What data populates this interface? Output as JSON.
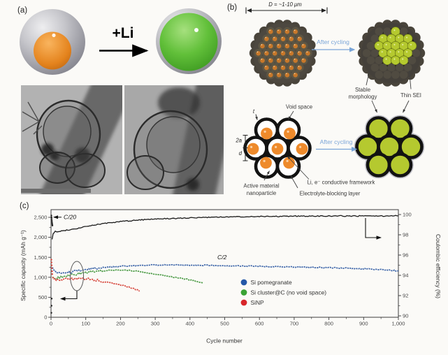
{
  "panel_a": {
    "label": "(a)",
    "reaction_label": "+Li"
  },
  "panel_b": {
    "label": "(b)",
    "diameter_label": "D = ~1-10 μm",
    "after_cycling_top": "After cycling",
    "after_cycling_bottom": "After cycling",
    "stable_morphology_line1": "Stable",
    "stable_morphology_line2": "morphology",
    "thin_sei": "Thin SEI",
    "void_space": "Void space",
    "thickness_label": "t",
    "diameter_2a_label": "2a",
    "spacing_d_label": "d",
    "active_material_line1": "Active material",
    "active_material_line2": "nanoparticle",
    "electrolyte_blocking": "Electrolyte-blocking layer",
    "conductive_framework": "Li, e⁻ conductive framework",
    "colors": {
      "particle_orange": "#ee8a2b",
      "lithiated_green": "#b5c92f",
      "framework_black": "#121212",
      "sei_gray": "#c2c2ca",
      "after_cycling_blue": "#7aa5d8",
      "shell_dark": "#46413a"
    }
  },
  "panel_c": {
    "label": "(c)"
  },
  "chart_data": {
    "type": "line",
    "title": "",
    "xlabel": "Cycle number",
    "ylabel_left": "Specific capacity (mAh g⁻¹)",
    "ylabel_right": "Coulombic efficiency (%)",
    "xlim": [
      0,
      1000
    ],
    "ylim_left": [
      0,
      2690
    ],
    "ylim_right": [
      90,
      100.6
    ],
    "grid": false,
    "legend_position": "inside bottom, left-center",
    "annotations": {
      "c20": "C/20",
      "c2": "C/2"
    },
    "x_ticks": [
      {
        "v": 0,
        "l": "0"
      },
      {
        "v": 100,
        "l": "100"
      },
      {
        "v": 200,
        "l": "200"
      },
      {
        "v": 300,
        "l": "300"
      },
      {
        "v": 400,
        "l": "400"
      },
      {
        "v": 500,
        "l": "500"
      },
      {
        "v": 600,
        "l": "600"
      },
      {
        "v": 700,
        "l": "700"
      },
      {
        "v": 800,
        "l": "800"
      },
      {
        "v": 900,
        "l": "900"
      },
      {
        "v": 1000,
        "l": "1,000"
      }
    ],
    "y_ticks_left": [
      {
        "v": 0,
        "l": "0"
      },
      {
        "v": 500,
        "l": "500"
      },
      {
        "v": 1000,
        "l": "1,000"
      },
      {
        "v": 1500,
        "l": "1,500"
      },
      {
        "v": 2000,
        "l": "2,000"
      },
      {
        "v": 2500,
        "l": "2,500"
      }
    ],
    "y_ticks_right": [
      {
        "v": 90,
        "l": "90"
      },
      {
        "v": 92,
        "l": "92"
      },
      {
        "v": 94,
        "l": "94"
      },
      {
        "v": 96,
        "l": "96"
      },
      {
        "v": 98,
        "l": "98"
      },
      {
        "v": 100,
        "l": "100"
      }
    ],
    "legend": [
      {
        "label": "Si pomegranate",
        "color": "#2458a8"
      },
      {
        "label": "Si cluster@C (no void space)",
        "color": "#3aa335"
      },
      {
        "label": "SiNP",
        "color": "#d8262a"
      }
    ],
    "series": [
      {
        "name": "Si pomegranate",
        "axis": "left",
        "color": "#3a63a8",
        "points": [
          [
            4,
            1260
          ],
          [
            8,
            1180
          ],
          [
            15,
            1120
          ],
          [
            25,
            1095
          ],
          [
            40,
            1110
          ],
          [
            60,
            1135
          ],
          [
            80,
            1165
          ],
          [
            100,
            1190
          ],
          [
            125,
            1220
          ],
          [
            150,
            1245
          ],
          [
            175,
            1262
          ],
          [
            200,
            1275
          ],
          [
            250,
            1295
          ],
          [
            300,
            1308
          ],
          [
            350,
            1310
          ],
          [
            400,
            1305
          ],
          [
            450,
            1300
          ],
          [
            500,
            1290
          ],
          [
            550,
            1284
          ],
          [
            600,
            1276
          ],
          [
            650,
            1268
          ],
          [
            700,
            1258
          ],
          [
            750,
            1248
          ],
          [
            800,
            1238
          ],
          [
            850,
            1228
          ],
          [
            900,
            1212
          ],
          [
            950,
            1192
          ],
          [
            1000,
            1162
          ]
        ]
      },
      {
        "name": "Si cluster@C (no void space)",
        "axis": "left",
        "color": "#4a9a44",
        "points": [
          [
            4,
            1010
          ],
          [
            10,
            980
          ],
          [
            20,
            990
          ],
          [
            40,
            1025
          ],
          [
            60,
            1060
          ],
          [
            80,
            1090
          ],
          [
            100,
            1115
          ],
          [
            125,
            1145
          ],
          [
            150,
            1165
          ],
          [
            175,
            1180
          ],
          [
            200,
            1185
          ],
          [
            225,
            1175
          ],
          [
            250,
            1150
          ],
          [
            275,
            1115
          ],
          [
            300,
            1080
          ],
          [
            325,
            1045
          ],
          [
            350,
            1010
          ],
          [
            375,
            975
          ],
          [
            400,
            935
          ],
          [
            420,
            900
          ],
          [
            437,
            860
          ]
        ]
      },
      {
        "name": "SiNP",
        "axis": "left",
        "color": "#d6453b",
        "points": [
          [
            4,
            1020
          ],
          [
            8,
            965
          ],
          [
            15,
            945
          ],
          [
            25,
            940
          ],
          [
            40,
            950
          ],
          [
            60,
            958
          ],
          [
            80,
            962
          ],
          [
            100,
            962
          ],
          [
            115,
            950
          ],
          [
            130,
            930
          ],
          [
            145,
            905
          ],
          [
            160,
            880
          ],
          [
            175,
            855
          ],
          [
            190,
            830
          ],
          [
            205,
            800
          ],
          [
            220,
            765
          ],
          [
            235,
            725
          ],
          [
            248,
            685
          ],
          [
            255,
            650
          ]
        ]
      },
      {
        "name": "Coulombic efficiency (Si pomegranate)",
        "axis": "right",
        "color": "#1a1a1a",
        "points": [
          [
            3,
            97.6
          ],
          [
            6,
            98.1
          ],
          [
            12,
            98.35
          ],
          [
            20,
            98.28
          ],
          [
            30,
            98.35
          ],
          [
            45,
            98.45
          ],
          [
            60,
            98.55
          ],
          [
            80,
            98.65
          ],
          [
            100,
            98.8
          ],
          [
            130,
            99.0
          ],
          [
            160,
            99.15
          ],
          [
            200,
            99.3
          ],
          [
            250,
            99.45
          ],
          [
            300,
            99.55
          ],
          [
            350,
            99.62
          ],
          [
            400,
            99.68
          ],
          [
            450,
            99.72
          ],
          [
            500,
            99.75
          ],
          [
            550,
            99.78
          ],
          [
            600,
            99.8
          ],
          [
            700,
            99.83
          ],
          [
            800,
            99.85
          ],
          [
            900,
            99.86
          ],
          [
            1000,
            99.87
          ]
        ]
      }
    ],
    "scatter": [
      {
        "name": "initial C/20 formation cycles",
        "axis": "left",
        "color": "#1a1a1a",
        "points": [
          [
            1,
            2545
          ],
          [
            1.5,
            2500
          ],
          [
            2,
            2455
          ],
          [
            2.5,
            2410
          ],
          [
            3,
            2368
          ],
          [
            3.5,
            2330
          ],
          [
            4,
            2295
          ]
        ]
      },
      {
        "name": "SiNP initial cycles",
        "axis": "left",
        "color": "#d6453b",
        "points": [
          [
            1,
            1440
          ],
          [
            1.5,
            1372
          ],
          [
            2,
            1300
          ],
          [
            2.5,
            1228
          ],
          [
            3,
            1152
          ],
          [
            3.5,
            1080
          ]
        ]
      },
      {
        "name": "initial coulombic efficiency",
        "axis": "right",
        "color": "#1a1a1a",
        "points": [
          [
            1,
            90.3
          ],
          [
            1.5,
            91.0
          ],
          [
            2,
            91.7
          ]
        ]
      }
    ]
  }
}
